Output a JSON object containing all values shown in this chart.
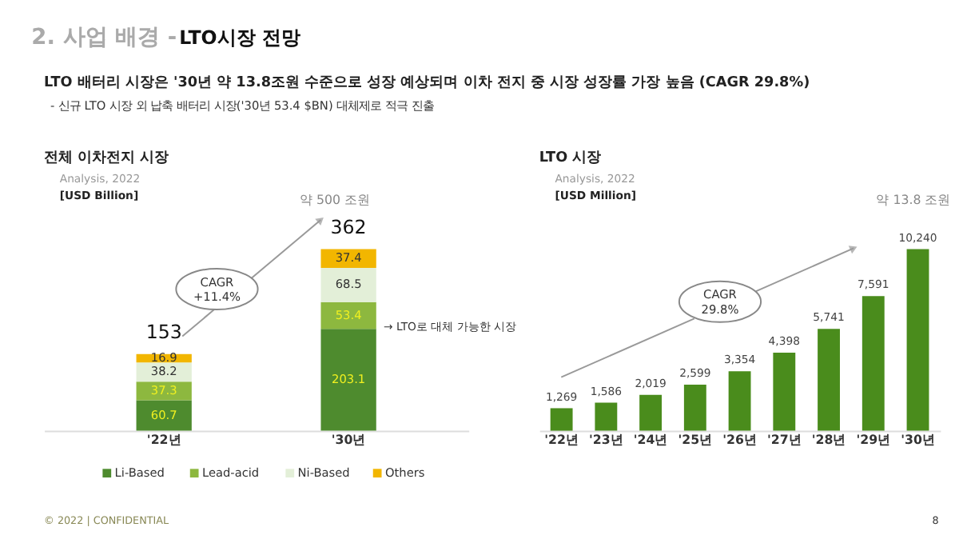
{
  "chart_data": [
    {
      "type": "bar",
      "stacked": true,
      "title": "전체 이차전지 시장",
      "subtitle": "Analysis, 2022",
      "ylabel": "[USD Billion]",
      "categories": [
        "'22년",
        "'30년"
      ],
      "series": [
        {
          "name": "Li-Based",
          "color": "#4e8b2e",
          "values": [
            60.7,
            203.1
          ]
        },
        {
          "name": "Lead-acid",
          "color": "#8db83f",
          "values": [
            37.3,
            53.4
          ]
        },
        {
          "name": "Ni-Based",
          "color": "#e3efd8",
          "values": [
            38.2,
            68.5
          ]
        },
        {
          "name": "Others",
          "color": "#f2b600",
          "values": [
            16.9,
            37.4
          ]
        }
      ],
      "data_labels": true,
      "totals": [
        "153",
        "362"
      ],
      "legend": "bottom",
      "annotations": [
        "2. 사업 배경 -",
        "LTO시장 전망",
        "LTO 배터리 시장은 '30년 약 13.8조원 수준으로 성장 예상되며 이차 전지 중 시장 성장률 가장 높음 (CAGR 29.8%)",
        "- 신규 LTO 시장 외 납축 배터리 시장('30년 53.4 $BN) 대체제로 적극 진출",
        "약 500 조원",
        "CAGR\n+11.4%",
        "→ LTO로 대체 가능한 시장",
        "© 2022 | CONFIDENTIAL",
        "8"
      ]
    },
    {
      "type": "bar",
      "title": "LTO 시장",
      "subtitle": "Analysis, 2022",
      "ylabel": "[USD Million]",
      "categories": [
        "'22년",
        "'23년",
        "'24년",
        "'25년",
        "'26년",
        "'27년",
        "'28년",
        "'29년",
        "'30년"
      ],
      "values": [
        1269,
        1586,
        2019,
        2599,
        3354,
        4398,
        5741,
        7591,
        10240
      ],
      "value_labels": [
        "1,269",
        "1,586",
        "2,019",
        "2,599",
        "3,354",
        "4,398",
        "5,741",
        "7,591",
        "10,240"
      ],
      "color": "#4a8c1c",
      "annotations": [
        "약 13.8 조원",
        "CAGR\n29.8%"
      ]
    }
  ]
}
